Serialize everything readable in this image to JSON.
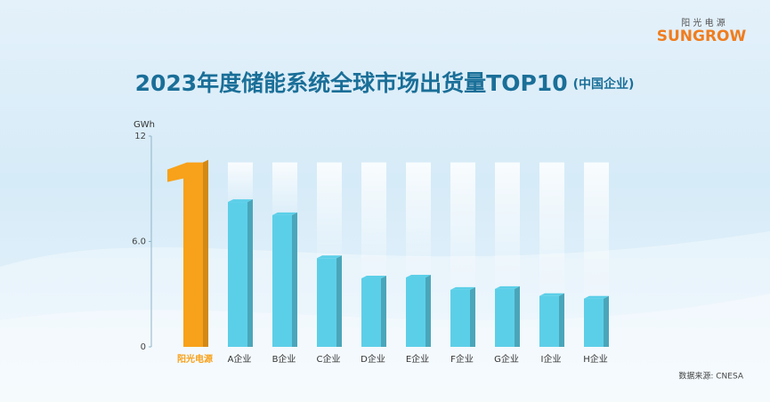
{
  "chart_data": {
    "type": "bar",
    "title": "2023年度储能系统全球市场出货量TOP10",
    "subtitle": "(中国企业)",
    "y_label": "GWh",
    "categories": [
      "阳光电源",
      "A企业",
      "B企业",
      "C企业",
      "D企业",
      "E企业",
      "F企业",
      "G企业",
      "I企业",
      "H企业"
    ],
    "values": [
      10.5,
      8.25,
      7.5,
      5.05,
      3.9,
      3.95,
      3.25,
      3.3,
      2.9,
      2.75
    ],
    "colors": [
      "#f8a11a",
      "#5ccfe8",
      "#5ccfe8",
      "#5ccfe8",
      "#5ccfe8",
      "#5ccfe8",
      "#5ccfe8",
      "#5ccfe8",
      "#5ccfe8",
      "#5ccfe8"
    ],
    "ylim": [
      0,
      12
    ],
    "yticks": [
      0,
      {
        "value": 6,
        "label": "6.0"
      },
      12
    ],
    "source": "数据来源: CNESA"
  },
  "brand": {
    "cn": "阳 光 电 源",
    "en": "SUNGROW"
  }
}
